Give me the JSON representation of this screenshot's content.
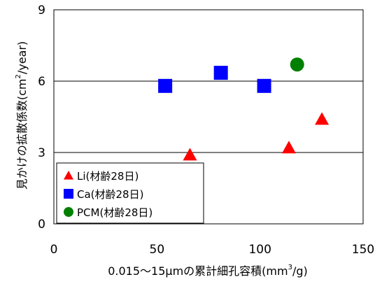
{
  "chart_data": {
    "type": "scatter",
    "title": "",
    "xlabel": "0.015～15μmの累計細孔容積(mm3/g)",
    "xlabel_parts": {
      "main": "0.015～15μmの累計細孔容積(mm",
      "sup": "3",
      "tail": "/g)"
    },
    "ylabel": "見かけの拡散係数(cm2/year)",
    "ylabel_parts": {
      "main": "見かけの拡散係数(cm",
      "sup": "2",
      "tail": "/year)"
    },
    "xlim": [
      0,
      150
    ],
    "ylim": [
      0,
      9
    ],
    "xticks": [
      0,
      50,
      100,
      150
    ],
    "yticks": [
      0,
      3,
      6,
      9
    ],
    "grid": "horizontal",
    "legend_position": "bottom-left",
    "series": [
      {
        "name": "Li(材齢28日)",
        "marker": "triangle",
        "color": "#ff0000",
        "points": [
          {
            "x": 66,
            "y": 2.9
          },
          {
            "x": 114,
            "y": 3.2
          },
          {
            "x": 130,
            "y": 4.4
          }
        ]
      },
      {
        "name": "Ca(材齢28日)",
        "marker": "square",
        "color": "#0000ff",
        "points": [
          {
            "x": 54,
            "y": 5.8
          },
          {
            "x": 81,
            "y": 6.35
          },
          {
            "x": 102,
            "y": 5.8
          }
        ]
      },
      {
        "name": "PCM(材齢28日)",
        "marker": "circle",
        "color": "#008000",
        "points": [
          {
            "x": 118,
            "y": 6.7
          }
        ]
      }
    ]
  }
}
